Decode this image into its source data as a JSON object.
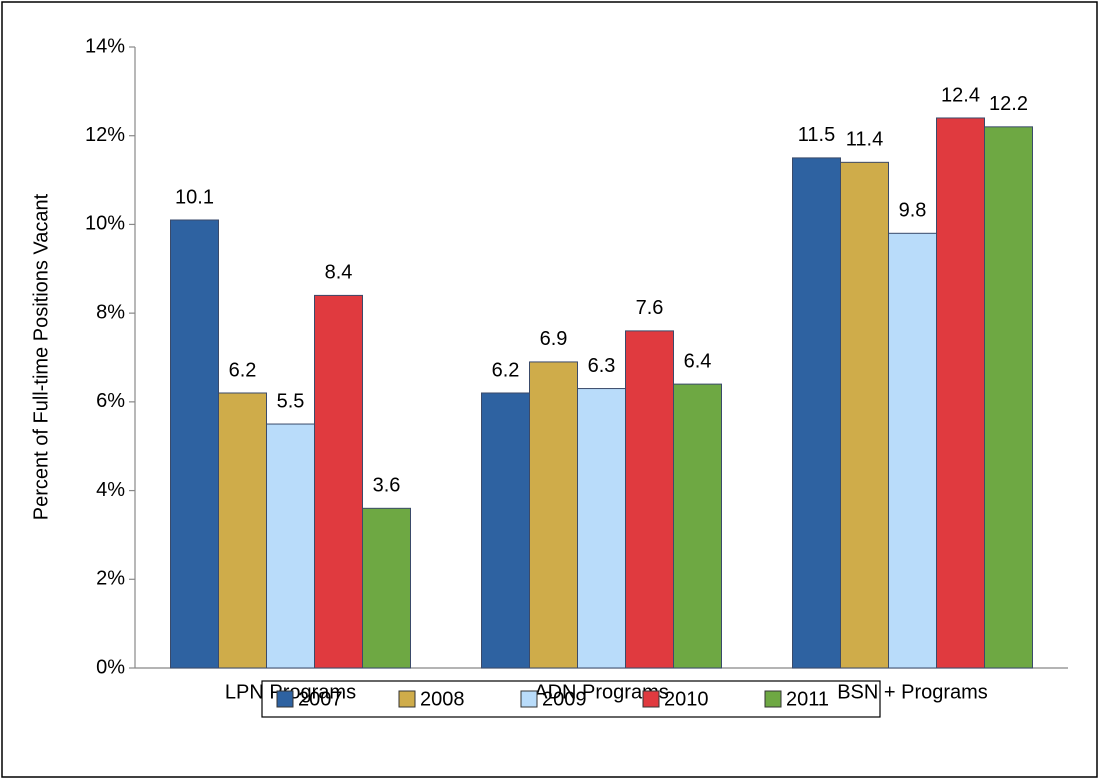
{
  "chart_data": {
    "type": "bar",
    "y_label": "Percent of Full-time Positions Vacant",
    "categories": [
      "LPN Programs",
      "ADN Programs",
      "BSN + Programs"
    ],
    "series": [
      {
        "name": "2007",
        "color": "#2e62a1",
        "values": [
          10.1,
          6.2,
          11.5
        ]
      },
      {
        "name": "2008",
        "color": "#cfac4a",
        "values": [
          6.2,
          6.9,
          11.4
        ]
      },
      {
        "name": "2009",
        "color": "#b9dcfa",
        "values": [
          5.5,
          6.3,
          9.8
        ]
      },
      {
        "name": "2010",
        "color": "#e03a3f",
        "values": [
          8.4,
          7.6,
          12.4
        ]
      },
      {
        "name": "2011",
        "color": "#6ea843",
        "values": [
          3.6,
          6.4,
          12.2
        ]
      }
    ],
    "ylim": [
      0,
      14
    ],
    "yticks": [
      {
        "value": 0,
        "label": "0%"
      },
      {
        "value": 2,
        "label": "2%"
      },
      {
        "value": 4,
        "label": "4%"
      },
      {
        "value": 6,
        "label": "6%"
      },
      {
        "value": 8,
        "label": "8%"
      },
      {
        "value": 10,
        "label": "10%"
      },
      {
        "value": 12,
        "label": "12%"
      },
      {
        "value": 14,
        "label": "14%"
      }
    ],
    "legend": "bottom"
  }
}
